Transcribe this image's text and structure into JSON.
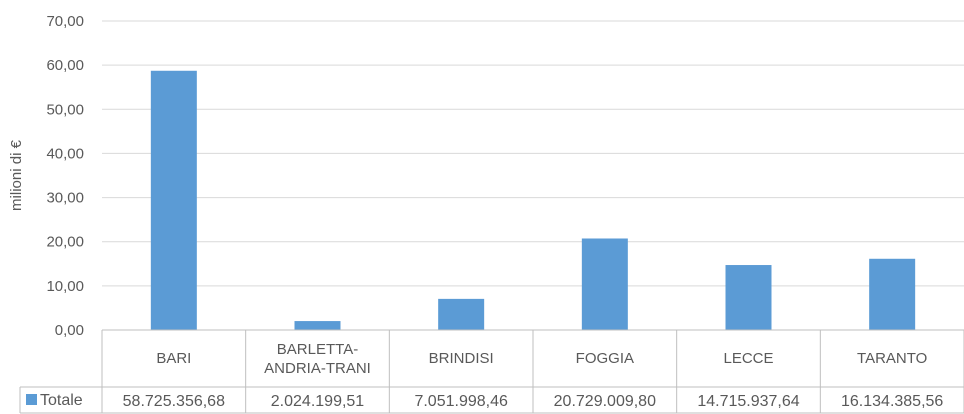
{
  "chart_data": {
    "type": "bar",
    "ylabel": "milioni di €",
    "ylim": [
      0,
      70
    ],
    "yticks": [
      "0,00",
      "10,00",
      "20,00",
      "30,00",
      "40,00",
      "50,00",
      "60,00",
      "70,00"
    ],
    "categories": [
      [
        "BARI"
      ],
      [
        "BARLETTA-",
        "ANDRIA-TRANI"
      ],
      [
        "BRINDISI"
      ],
      [
        "FOGGIA"
      ],
      [
        "LECCE"
      ],
      [
        "TARANTO"
      ]
    ],
    "series": [
      {
        "name": "Totale",
        "color": "#5b9bd5",
        "values": [
          58.725,
          2.024,
          7.052,
          20.729,
          14.716,
          16.134
        ],
        "table_values": [
          "58.725.356,68",
          "2.024.199,51",
          "7.051.998,46",
          "20.729.009,80",
          "14.715.937,64",
          "16.134.385,56"
        ]
      }
    ],
    "grid": true,
    "legend": "data-table"
  }
}
